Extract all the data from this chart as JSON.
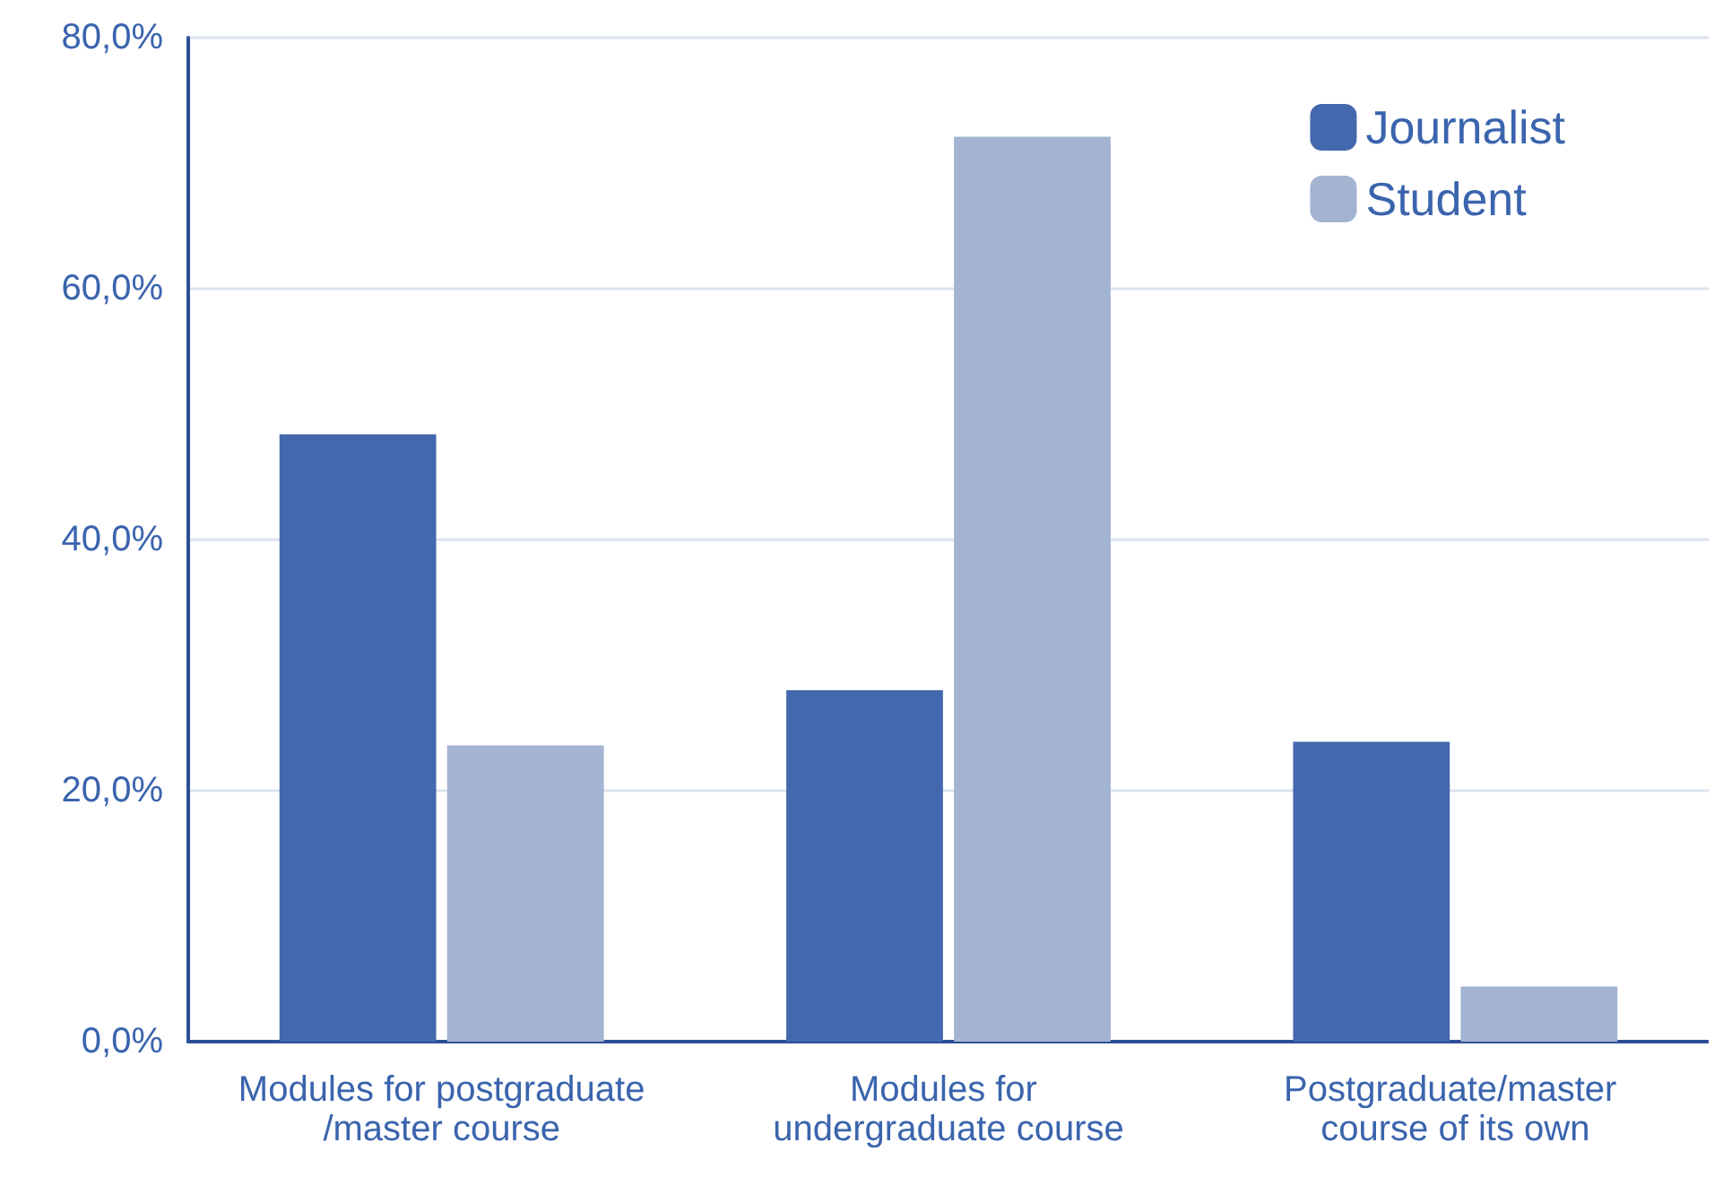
{
  "chart_data": {
    "type": "bar",
    "categories": [
      "Modules for postgraduate/master course",
      "Modules for undergraduate course",
      "Postgraduate/master course of its own"
    ],
    "series": [
      {
        "name": "Journalist",
        "color": "#4468ae",
        "values": [
          48.4,
          28.0,
          23.9
        ]
      },
      {
        "name": "Student",
        "color": "#a3b3d2",
        "values": [
          23.6,
          72.1,
          4.4
        ]
      }
    ],
    "ylim": [
      0,
      80
    ],
    "yticks": [
      {
        "value": 0,
        "label": "0,0%"
      },
      {
        "value": 20,
        "label": "20,0%"
      },
      {
        "value": 40,
        "label": "40,0%"
      },
      {
        "value": 60,
        "label": "60,0%"
      },
      {
        "value": 80,
        "label": "80,0%"
      }
    ],
    "grid": "y",
    "legend": "top right"
  }
}
